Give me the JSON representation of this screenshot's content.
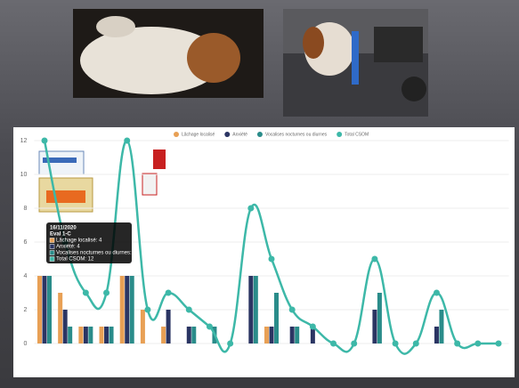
{
  "chart_data": {
    "type": "bar-line",
    "categories": [
      null,
      null,
      null,
      null,
      null,
      null,
      null,
      null,
      null,
      null,
      null,
      null,
      null,
      null,
      null,
      null,
      null,
      null,
      null,
      null,
      null,
      null,
      null
    ],
    "series": [
      {
        "name": "Lâchage localisé",
        "type": "bar",
        "color": "#e8a055",
        "values": [
          4,
          3,
          1,
          1,
          4,
          2,
          1,
          0,
          0,
          0,
          0,
          1,
          0,
          0,
          0,
          0,
          0,
          0,
          0,
          0,
          0,
          0,
          0
        ]
      },
      {
        "name": "Anxiété",
        "type": "bar",
        "color": "#2b3563",
        "values": [
          4,
          2,
          1,
          1,
          4,
          0,
          2,
          1,
          0,
          0,
          4,
          1,
          1,
          1,
          0,
          0,
          2,
          0,
          0,
          1,
          0,
          0,
          0
        ]
      },
      {
        "name": "Vocalises nocturnes ou diurnes",
        "type": "bar",
        "color": "#2a8c8a",
        "values": [
          4,
          1,
          1,
          1,
          4,
          0,
          0,
          1,
          1,
          0,
          4,
          3,
          1,
          0,
          0,
          0,
          3,
          0,
          0,
          2,
          0,
          0,
          0
        ]
      },
      {
        "name": "Total CSOM",
        "type": "line",
        "color": "#3db8a8",
        "values": [
          12,
          6,
          3,
          3,
          12,
          2,
          3,
          2,
          1,
          0,
          8,
          5,
          2,
          1,
          0,
          0,
          5,
          0,
          0,
          3,
          0,
          0,
          0
        ]
      }
    ],
    "ylim": [
      0,
      12
    ],
    "yticks": [
      0,
      2,
      4,
      6,
      8,
      10,
      12
    ],
    "grid": true,
    "legend": "top",
    "tooltip": {
      "title": [
        "16/11/2020",
        "Eval 1-C"
      ],
      "lines": [
        "Lâchage localisé: 4",
        "Anxiété: 4",
        "Vocalises nocturnes ou diurnes: 4",
        "Total CSOM: 12"
      ]
    }
  }
}
